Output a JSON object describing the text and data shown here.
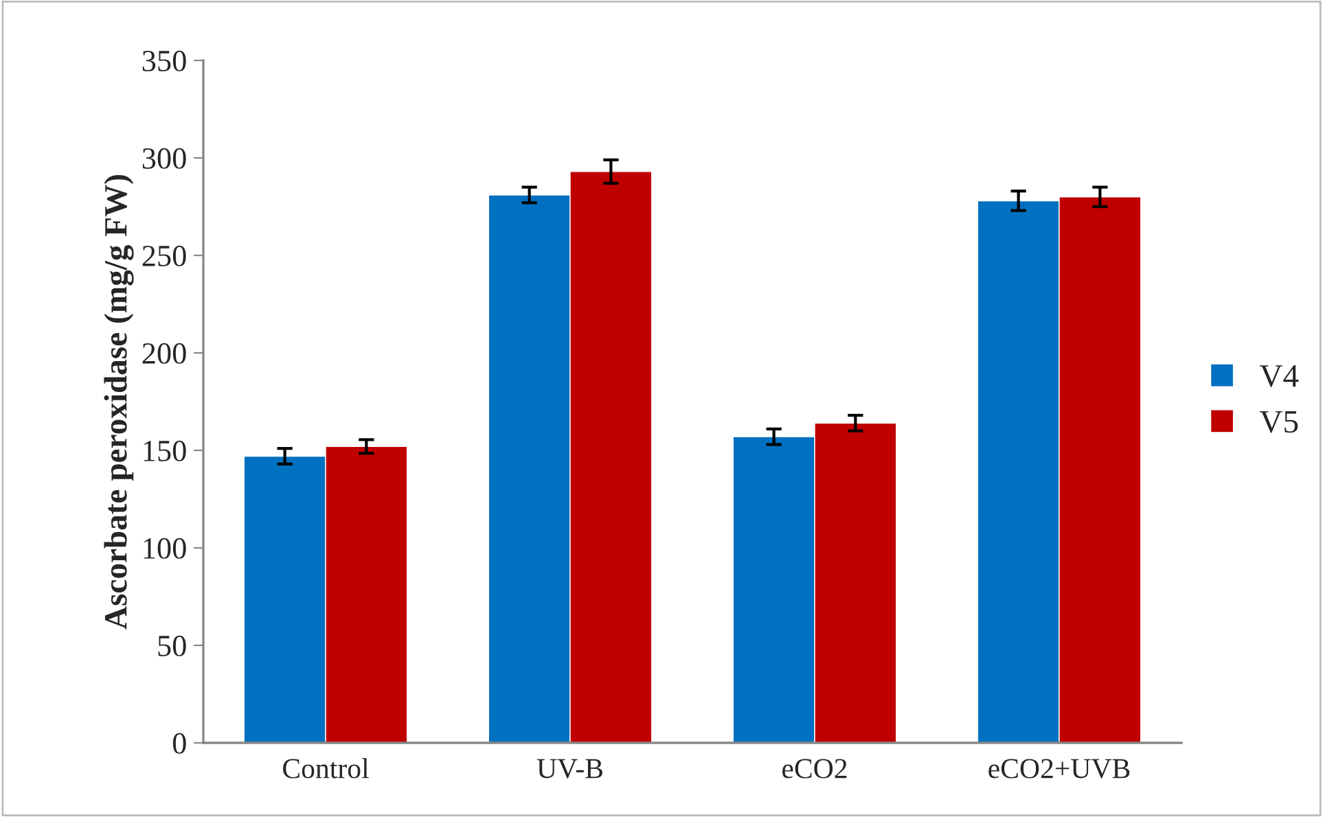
{
  "chart_data": {
    "type": "bar",
    "ylabel": "Ascorbate peroxidase (mg/g FW)",
    "categories": [
      "Control",
      "UV-B",
      "eCO2",
      "eCO2+UVB"
    ],
    "series": [
      {
        "name": "V4",
        "color": "#0070c0",
        "values": [
          147,
          281,
          157,
          278
        ],
        "errors": [
          4,
          4,
          4,
          5
        ]
      },
      {
        "name": "V5",
        "color": "#c00000",
        "values": [
          152,
          293,
          164,
          280
        ],
        "errors": [
          3.5,
          6,
          4,
          5
        ]
      }
    ],
    "ylim": [
      0,
      350
    ],
    "yticks": [
      0,
      50,
      100,
      150,
      200,
      250,
      300,
      350
    ],
    "grid": false,
    "legend": "right"
  }
}
